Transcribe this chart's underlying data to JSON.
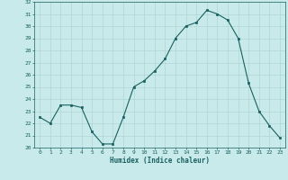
{
  "x": [
    0,
    1,
    2,
    3,
    4,
    5,
    6,
    7,
    8,
    9,
    10,
    11,
    12,
    13,
    14,
    15,
    16,
    17,
    18,
    19,
    20,
    21,
    22,
    23
  ],
  "y": [
    22.5,
    22.0,
    23.5,
    23.5,
    23.3,
    21.3,
    20.3,
    20.3,
    22.5,
    25.0,
    25.5,
    26.3,
    27.3,
    29.0,
    30.0,
    30.3,
    31.3,
    31.0,
    30.5,
    29.0,
    25.3,
    23.0,
    21.8,
    20.8
  ],
  "xlabel": "Humidex (Indice chaleur)",
  "bg_color": "#c8eaea",
  "grid_color": "#b0d4d4",
  "line_color": "#1a6060",
  "marker_color": "#1a6060",
  "xmin": -0.5,
  "xmax": 23.5,
  "ymin": 20,
  "ymax": 32,
  "yticks": [
    20,
    21,
    22,
    23,
    24,
    25,
    26,
    27,
    28,
    29,
    30,
    31,
    32
  ],
  "xticks": [
    0,
    1,
    2,
    3,
    4,
    5,
    6,
    7,
    8,
    9,
    10,
    11,
    12,
    13,
    14,
    15,
    16,
    17,
    18,
    19,
    20,
    21,
    22,
    23
  ]
}
